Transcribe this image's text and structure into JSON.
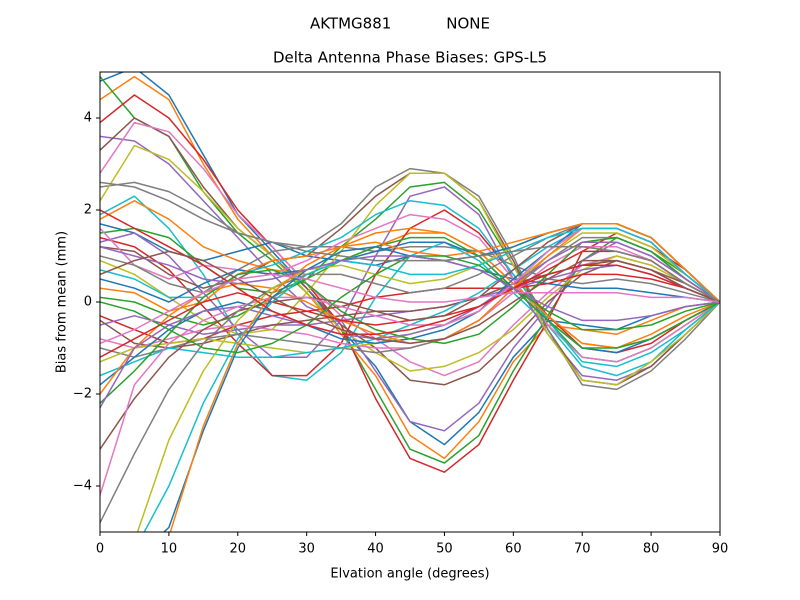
{
  "figure": {
    "suptitle_left": "AKTMG881",
    "suptitle_right": "NONE"
  },
  "chart_data": {
    "type": "line",
    "title": "Delta Antenna Phase Biases: GPS-L5",
    "xlabel": "Elvation angle (degrees)",
    "ylabel": "Bias from mean (mm)",
    "xlim": [
      0,
      90
    ],
    "ylim": [
      -5,
      5
    ],
    "xticks": [
      0,
      10,
      20,
      30,
      40,
      50,
      60,
      70,
      80,
      90
    ],
    "yticks": [
      -4,
      -2,
      0,
      2,
      4
    ],
    "grid": false,
    "legend": "none",
    "x": [
      0,
      5,
      10,
      15,
      20,
      25,
      30,
      35,
      40,
      45,
      50,
      55,
      60,
      65,
      70,
      75,
      80,
      85,
      90
    ],
    "color_cycle": [
      "#1f77b4",
      "#ff7f0e",
      "#2ca02c",
      "#d62728",
      "#9467bd",
      "#8c564b",
      "#e377c2",
      "#7f7f7f",
      "#bcbd22",
      "#17becf"
    ],
    "series": [
      {
        "values": [
          4.8,
          5.1,
          4.5,
          3.2,
          1.9,
          1.1,
          0.3,
          -0.6,
          -1.4,
          -2.6,
          -3.1,
          -2.4,
          -1.2,
          -0.4,
          -0.5,
          -0.6,
          -0.3,
          -0.1,
          0.0
        ]
      },
      {
        "values": [
          4.4,
          4.9,
          4.4,
          3.0,
          1.8,
          1.0,
          0.2,
          -0.7,
          -1.6,
          -2.9,
          -3.4,
          -2.6,
          -1.3,
          -0.5,
          -0.6,
          -0.7,
          -0.4,
          -0.1,
          0.0
        ]
      },
      {
        "values": [
          4.9,
          4.0,
          3.6,
          2.4,
          1.5,
          0.9,
          0.2,
          -0.6,
          -1.9,
          -3.2,
          -3.5,
          -2.9,
          -1.5,
          -0.3,
          0.9,
          1.4,
          1.1,
          0.6,
          0.0
        ]
      },
      {
        "values": [
          3.9,
          4.5,
          4.0,
          3.1,
          2.0,
          1.2,
          0.4,
          -0.5,
          -2.1,
          -3.4,
          -3.7,
          -3.1,
          -1.7,
          -0.4,
          1.1,
          1.5,
          1.2,
          0.7,
          0.0
        ]
      },
      {
        "values": [
          3.6,
          3.5,
          3.0,
          2.2,
          1.4,
          0.6,
          -0.1,
          -0.4,
          -1.5,
          -2.6,
          -2.8,
          -2.2,
          -1.0,
          -0.1,
          0.9,
          1.3,
          1.0,
          0.5,
          0.0
        ]
      },
      {
        "values": [
          3.3,
          4.0,
          3.6,
          2.5,
          1.6,
          1.0,
          0.3,
          -0.5,
          -1.0,
          -1.7,
          -1.8,
          -1.5,
          -0.8,
          0.0,
          0.6,
          0.9,
          0.7,
          0.3,
          0.0
        ]
      },
      {
        "values": [
          2.8,
          3.9,
          3.7,
          2.9,
          1.9,
          1.2,
          0.4,
          -0.3,
          -0.8,
          -1.3,
          -1.6,
          -1.3,
          -0.5,
          0.2,
          0.8,
          1.0,
          0.8,
          0.4,
          0.0
        ]
      },
      {
        "values": [
          2.5,
          2.6,
          2.4,
          2.0,
          1.5,
          1.3,
          1.2,
          1.2,
          1.1,
          1.2,
          1.2,
          1.1,
          0.8,
          0.5,
          0.4,
          0.5,
          0.4,
          0.2,
          0.0
        ]
      },
      {
        "values": [
          2.2,
          3.4,
          3.1,
          2.4,
          1.6,
          1.0,
          0.2,
          -0.6,
          -1.1,
          -1.5,
          -1.4,
          -1.1,
          -0.6,
          0.1,
          0.7,
          1.0,
          0.8,
          0.4,
          0.0
        ]
      },
      {
        "values": [
          1.9,
          2.3,
          1.6,
          0.6,
          -0.7,
          -1.6,
          -1.7,
          -1.1,
          0.1,
          1.0,
          1.3,
          0.9,
          0.2,
          -0.5,
          -1.4,
          -1.6,
          -1.3,
          -0.6,
          0.0
        ]
      },
      {
        "values": [
          1.7,
          1.5,
          1.1,
          0.9,
          1.1,
          1.3,
          1.0,
          0.9,
          0.8,
          1.0,
          0.9,
          0.7,
          0.5,
          0.4,
          0.3,
          0.3,
          0.2,
          0.1,
          0.0
        ]
      },
      {
        "values": [
          1.8,
          2.2,
          1.8,
          1.2,
          0.9,
          0.7,
          0.6,
          0.9,
          1.2,
          1.5,
          1.5,
          1.1,
          0.4,
          -0.3,
          -0.9,
          -1.0,
          -0.8,
          -0.4,
          0.0
        ]
      },
      {
        "values": [
          1.5,
          1.6,
          1.4,
          0.8,
          0.3,
          0.2,
          0.5,
          1.2,
          1.8,
          2.5,
          2.6,
          2.0,
          0.8,
          -0.4,
          -1.2,
          -1.3,
          -1.0,
          -0.5,
          0.0
        ]
      },
      {
        "values": [
          1.4,
          1.2,
          0.7,
          -0.1,
          -0.9,
          -1.6,
          -1.6,
          -0.9,
          0.6,
          1.6,
          2.0,
          1.5,
          0.6,
          -0.3,
          -1.0,
          -1.1,
          -0.9,
          -0.4,
          0.0
        ]
      },
      {
        "values": [
          1.3,
          1.5,
          1.0,
          0.2,
          -0.6,
          -1.2,
          -1.2,
          -0.4,
          1.0,
          2.3,
          2.5,
          1.9,
          0.5,
          -0.7,
          -1.6,
          -1.7,
          -1.4,
          -0.7,
          0.0
        ]
      },
      {
        "values": [
          1.2,
          1.1,
          0.6,
          0.3,
          0.5,
          0.9,
          1.0,
          1.6,
          2.3,
          2.8,
          2.8,
          2.2,
          0.9,
          -0.6,
          -1.7,
          -1.8,
          -1.4,
          -0.7,
          0.0
        ]
      },
      {
        "values": [
          1.6,
          0.8,
          0.5,
          0.8,
          0.7,
          0.6,
          0.9,
          1.3,
          1.6,
          1.9,
          1.8,
          1.4,
          0.5,
          -0.5,
          -1.2,
          -1.3,
          -1.0,
          -0.5,
          0.0
        ]
      },
      {
        "values": [
          1.0,
          0.8,
          0.4,
          0.2,
          0.7,
          1.1,
          1.2,
          1.7,
          2.5,
          2.9,
          2.8,
          2.3,
          1.0,
          -0.6,
          -1.8,
          -1.9,
          -1.5,
          -0.8,
          0.0
        ]
      },
      {
        "values": [
          0.9,
          0.6,
          0.1,
          -0.4,
          -0.7,
          -0.6,
          0.2,
          1.1,
          2.1,
          2.8,
          2.8,
          2.2,
          0.8,
          -0.7,
          -1.7,
          -1.8,
          -1.3,
          -0.7,
          0.0
        ]
      },
      {
        "values": [
          0.7,
          0.5,
          0.1,
          0.1,
          0.6,
          0.8,
          1.1,
          1.4,
          1.9,
          2.2,
          2.1,
          1.6,
          0.6,
          -0.4,
          -1.3,
          -1.4,
          -1.1,
          -0.6,
          0.0
        ]
      },
      {
        "values": [
          0.5,
          0.3,
          0.0,
          0.4,
          0.7,
          0.6,
          0.7,
          0.9,
          1.1,
          1.3,
          1.3,
          1.0,
          0.3,
          -0.4,
          -1.0,
          -1.1,
          -0.8,
          -0.4,
          0.0
        ]
      },
      {
        "values": [
          0.3,
          0.2,
          -0.2,
          0.0,
          0.6,
          0.9,
          1.0,
          1.2,
          1.5,
          1.6,
          1.5,
          1.1,
          0.4,
          -0.3,
          -0.9,
          -1.0,
          -0.7,
          -0.3,
          0.0
        ]
      },
      {
        "values": [
          0.1,
          0.0,
          -0.3,
          -0.5,
          -0.3,
          0.1,
          0.5,
          0.9,
          1.2,
          1.4,
          1.4,
          1.0,
          0.3,
          -0.4,
          -1.0,
          -1.0,
          -0.8,
          -0.4,
          0.0
        ]
      },
      {
        "values": [
          -0.3,
          -0.6,
          -0.9,
          -0.8,
          -0.5,
          -0.3,
          -0.2,
          -0.1,
          0.1,
          0.2,
          0.3,
          0.3,
          0.3,
          0.4,
          0.6,
          0.6,
          0.5,
          0.3,
          0.0
        ]
      },
      {
        "values": [
          -0.5,
          -0.3,
          -0.5,
          -0.7,
          -0.6,
          -0.5,
          -0.5,
          -0.4,
          -0.3,
          -0.2,
          -0.1,
          0.1,
          0.3,
          0.5,
          0.7,
          0.8,
          0.6,
          0.3,
          0.0
        ]
      },
      {
        "values": [
          -0.4,
          -0.9,
          -1.0,
          -0.9,
          -0.7,
          -0.5,
          -0.4,
          -0.3,
          -0.2,
          -0.2,
          -0.1,
          0.1,
          0.4,
          0.6,
          0.8,
          0.9,
          0.7,
          0.4,
          0.0
        ]
      },
      {
        "values": [
          -0.8,
          -1.0,
          -0.8,
          -0.6,
          -0.5,
          -0.6,
          -0.7,
          -0.9,
          -1.0,
          -1.0,
          -0.8,
          -0.4,
          0.2,
          0.8,
          1.2,
          1.2,
          0.9,
          0.4,
          0.0
        ]
      },
      {
        "values": [
          -1.0,
          -1.2,
          -1.0,
          -0.8,
          -0.7,
          -0.8,
          -0.9,
          -1.0,
          -1.1,
          -1.0,
          -0.8,
          -0.4,
          0.3,
          0.9,
          1.4,
          1.4,
          1.1,
          0.5,
          0.0
        ]
      },
      {
        "values": [
          -1.3,
          -1.0,
          -0.9,
          -0.8,
          -0.9,
          -1.0,
          -1.1,
          -1.0,
          -0.9,
          -0.7,
          -0.5,
          -0.2,
          0.4,
          1.0,
          1.5,
          1.5,
          1.2,
          0.6,
          0.0
        ]
      },
      {
        "values": [
          -1.6,
          -1.3,
          -1.0,
          -1.1,
          -1.2,
          -1.2,
          -1.1,
          -1.0,
          -0.8,
          -0.5,
          -0.2,
          0.2,
          0.7,
          1.2,
          1.6,
          1.6,
          1.3,
          0.6,
          0.0
        ]
      },
      {
        "values": [
          -1.8,
          -1.2,
          -0.6,
          -0.2,
          0.0,
          -0.2,
          -0.5,
          -0.8,
          -0.9,
          -0.8,
          -0.6,
          -0.2,
          0.5,
          1.1,
          1.7,
          1.7,
          1.4,
          0.7,
          0.0
        ]
      },
      {
        "values": [
          -2.0,
          -1.0,
          -0.3,
          0.2,
          0.4,
          0.3,
          0.0,
          -0.4,
          -0.7,
          -0.9,
          -0.8,
          -0.4,
          0.3,
          1.0,
          1.6,
          1.6,
          1.3,
          0.6,
          0.0
        ]
      },
      {
        "values": [
          -2.2,
          -1.5,
          -0.7,
          0.1,
          0.6,
          0.7,
          0.4,
          -0.2,
          -0.6,
          -0.8,
          -0.9,
          -0.7,
          -0.1,
          0.6,
          1.3,
          1.4,
          1.1,
          0.5,
          0.0
        ]
      },
      {
        "values": [
          -1.2,
          -0.8,
          -0.4,
          0.0,
          0.2,
          0.0,
          -0.2,
          -0.4,
          -0.5,
          -0.4,
          -0.3,
          -0.1,
          0.3,
          0.7,
          1.1,
          1.1,
          0.9,
          0.4,
          0.0
        ]
      },
      {
        "values": [
          -2.3,
          -1.0,
          -0.5,
          -0.2,
          -0.1,
          -0.3,
          -0.5,
          -0.7,
          -0.8,
          -0.7,
          -0.5,
          -0.1,
          0.4,
          0.9,
          1.3,
          1.3,
          1.0,
          0.5,
          0.0
        ]
      },
      {
        "values": [
          -3.2,
          -2.1,
          -1.2,
          -0.6,
          -0.2,
          0.0,
          0.1,
          0.0,
          -0.2,
          -0.4,
          -0.3,
          0.1,
          0.7,
          1.3,
          1.7,
          1.7,
          1.4,
          0.7,
          0.0
        ]
      },
      {
        "values": [
          -4.2,
          -1.8,
          -0.9,
          -0.4,
          -0.1,
          0.1,
          0.1,
          -0.1,
          -0.3,
          -0.5,
          -0.5,
          -0.2,
          0.4,
          1.1,
          1.6,
          1.6,
          1.3,
          0.6,
          0.0
        ]
      },
      {
        "values": [
          -4.8,
          -3.3,
          -1.9,
          -0.9,
          -0.2,
          0.3,
          0.6,
          0.6,
          0.4,
          0.2,
          0.3,
          0.6,
          1.0,
          1.4,
          1.7,
          1.7,
          1.4,
          0.7,
          0.0
        ]
      },
      {
        "values": [
          -5.5,
          -5.2,
          -3.0,
          -1.5,
          -0.4,
          0.3,
          0.7,
          0.8,
          0.6,
          0.4,
          0.5,
          0.8,
          1.2,
          1.5,
          1.7,
          1.7,
          1.4,
          0.7,
          0.0
        ]
      },
      {
        "values": [
          -5.6,
          -5.4,
          -4.0,
          -2.2,
          -0.8,
          0.0,
          0.6,
          0.9,
          0.8,
          0.6,
          0.6,
          0.8,
          1.1,
          1.4,
          1.6,
          1.6,
          1.3,
          0.6,
          0.0
        ]
      },
      {
        "values": [
          -5.7,
          -5.6,
          -4.9,
          -2.8,
          -1.0,
          0.1,
          0.7,
          1.1,
          1.2,
          1.0,
          0.9,
          1.0,
          1.2,
          1.5,
          1.7,
          1.7,
          1.4,
          0.7,
          0.0
        ]
      },
      {
        "values": [
          -5.8,
          -5.7,
          -5.1,
          -2.7,
          -0.9,
          0.2,
          0.8,
          1.2,
          1.3,
          1.1,
          1.0,
          1.1,
          1.3,
          1.5,
          1.7,
          1.7,
          1.4,
          0.7,
          0.0
        ]
      },
      {
        "values": [
          0.0,
          -0.2,
          -0.6,
          -1.0,
          -1.1,
          -0.9,
          -0.5,
          0.1,
          0.6,
          1.0,
          1.0,
          0.8,
          0.3,
          -0.2,
          -0.6,
          -0.6,
          -0.5,
          -0.2,
          0.0
        ]
      },
      {
        "values": [
          2.0,
          1.6,
          1.2,
          0.8,
          0.3,
          -0.2,
          -0.5,
          -0.7,
          -0.7,
          -0.6,
          -0.4,
          -0.1,
          0.3,
          0.6,
          0.8,
          0.8,
          0.6,
          0.3,
          0.0
        ]
      },
      {
        "values": [
          1.2,
          1.0,
          0.8,
          0.5,
          0.4,
          0.5,
          0.7,
          0.9,
          1.0,
          1.0,
          0.9,
          0.7,
          0.3,
          -0.1,
          -0.4,
          -0.4,
          -0.3,
          -0.1,
          0.0
        ]
      },
      {
        "values": [
          0.6,
          0.9,
          1.1,
          0.9,
          0.5,
          0.1,
          -0.3,
          -0.6,
          -0.8,
          -0.9,
          -0.8,
          -0.5,
          0.0,
          0.5,
          0.9,
          0.9,
          0.7,
          0.3,
          0.0
        ]
      },
      {
        "values": [
          -0.9,
          -0.6,
          -0.2,
          0.2,
          0.5,
          0.6,
          0.5,
          0.3,
          0.1,
          0.0,
          0.0,
          0.1,
          0.2,
          0.2,
          0.2,
          0.2,
          0.1,
          0.1,
          0.0
        ]
      },
      {
        "values": [
          2.6,
          2.5,
          2.2,
          1.8,
          1.5,
          1.3,
          1.1,
          1.0,
          0.9,
          0.9,
          0.9,
          1.0,
          1.1,
          1.2,
          1.2,
          1.1,
          0.9,
          0.4,
          0.0
        ]
      }
    ]
  }
}
